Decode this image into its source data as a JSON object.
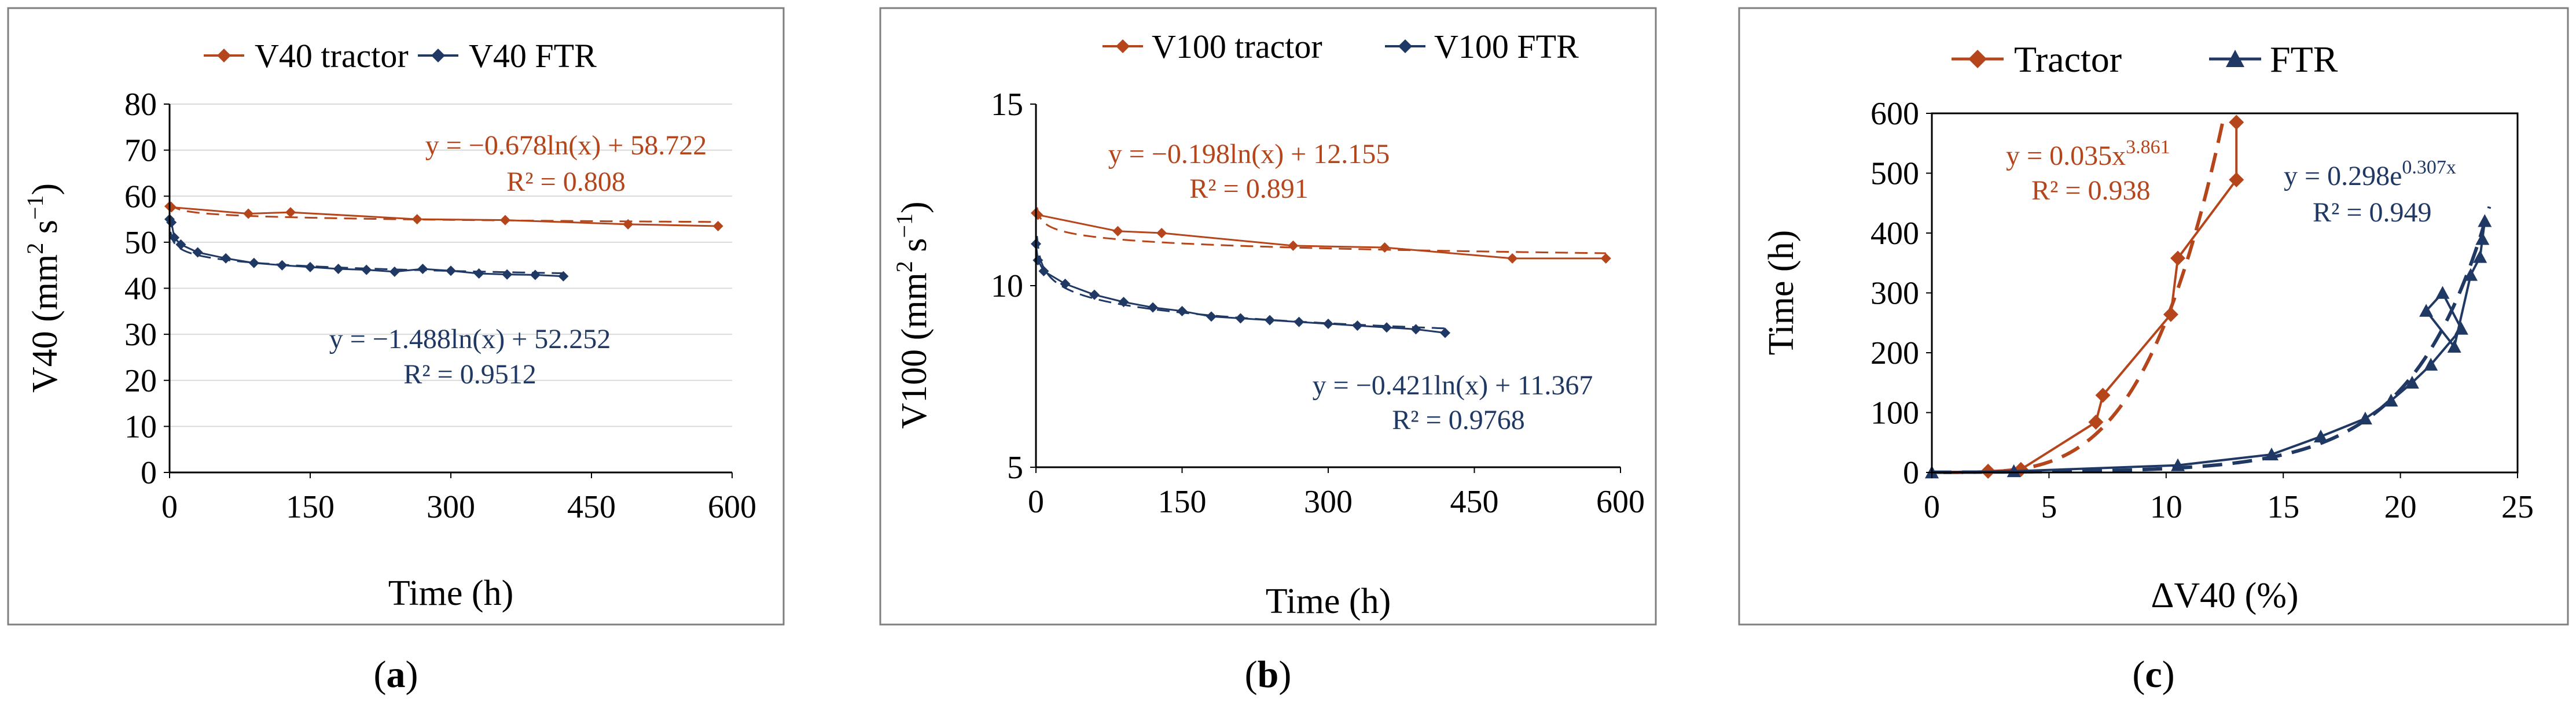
{
  "colors": {
    "tractor": "#B5451B",
    "ftr": "#1F3864",
    "frame": "#7F7F7F",
    "axis": "#000000"
  },
  "caption_labels": [
    "a",
    "b",
    "c"
  ],
  "chart_data": [
    {
      "type": "scatter",
      "panel": "a",
      "title": "",
      "xlabel": "Time (h)",
      "ylabel_main": "V40  (mm",
      "ylabel_sup1": "2",
      "ylabel_mid": " s",
      "ylabel_sup2": "−1",
      "ylabel_end": ")",
      "xlim": [
        0,
        600
      ],
      "ylim": [
        0,
        80
      ],
      "xticks": [
        0,
        150,
        300,
        450,
        600
      ],
      "yticks": [
        0,
        10,
        20,
        30,
        40,
        50,
        60,
        70,
        80
      ],
      "legend_position": "top",
      "series": [
        {
          "name": "V40 tractor",
          "x": [
            0,
            2,
            84,
            129,
            264,
            358,
            489,
            585
          ],
          "y": [
            57.8,
            57.6,
            56.2,
            56.5,
            55.0,
            54.8,
            53.9,
            53.5
          ],
          "trendline": {
            "kind": "log",
            "a": -0.678,
            "b": 58.722
          },
          "equation": "y = −0.678ln(x) + 58.722",
          "r2": "R² = 0.808"
        },
        {
          "name": "V40 FTR",
          "x": [
            0,
            2,
            5,
            12,
            30,
            60,
            90,
            120,
            150,
            180,
            210,
            240,
            270,
            300,
            330,
            360,
            390,
            420
          ],
          "y": [
            55.0,
            54.3,
            51.0,
            49.5,
            47.8,
            46.5,
            45.5,
            45.0,
            44.6,
            44.2,
            44.0,
            43.6,
            44.2,
            43.8,
            43.2,
            43.0,
            42.9,
            42.6
          ],
          "trendline": {
            "kind": "log",
            "a": -1.488,
            "b": 52.252
          },
          "equation": "y =  −1.488ln(x) + 52.252",
          "r2": "R² = 0.9512"
        }
      ]
    },
    {
      "type": "scatter",
      "panel": "b",
      "title": "",
      "xlabel": "Time (h)",
      "ylabel_main": "V100  (mm",
      "ylabel_sup1": "2",
      "ylabel_mid": " s",
      "ylabel_sup2": "−1",
      "ylabel_end": ")",
      "xlim": [
        0,
        600
      ],
      "ylim": [
        5,
        15
      ],
      "xticks": [
        0,
        150,
        300,
        450,
        600
      ],
      "yticks": [
        5,
        10,
        15
      ],
      "legend_position": "top",
      "series": [
        {
          "name": "V100 tractor",
          "x": [
            0,
            2,
            84,
            129,
            264,
            358,
            489,
            585
          ],
          "y": [
            12.0,
            11.95,
            11.5,
            11.45,
            11.1,
            11.05,
            10.75,
            10.75
          ],
          "trendline": {
            "kind": "log",
            "a": -0.198,
            "b": 12.155
          },
          "equation": "y = −0.198ln(x) + 12.155",
          "r2": "R² = 0.891"
        },
        {
          "name": "V100 FTR",
          "x": [
            0,
            2,
            8,
            30,
            60,
            90,
            120,
            150,
            180,
            210,
            240,
            270,
            300,
            330,
            360,
            390,
            420
          ],
          "y": [
            11.15,
            10.7,
            10.4,
            10.05,
            9.75,
            9.55,
            9.4,
            9.3,
            9.15,
            9.1,
            9.05,
            9.0,
            8.95,
            8.9,
            8.85,
            8.8,
            8.7
          ],
          "trendline": {
            "kind": "log",
            "a": -0.421,
            "b": 11.367
          },
          "equation": "y =  −0.421ln(x) + 11.367",
          "r2": "R² = 0.9768"
        }
      ]
    },
    {
      "type": "scatter",
      "panel": "c",
      "title": "",
      "xlabel": "ΔV40 (%)",
      "ylabel": "Time (h)",
      "xlim": [
        0,
        25
      ],
      "ylim": [
        0,
        600
      ],
      "xticks": [
        0,
        5,
        10,
        15,
        20,
        25
      ],
      "yticks": [
        0,
        100,
        200,
        300,
        400,
        500,
        600
      ],
      "legend_position": "top",
      "series": [
        {
          "name": "Tractor",
          "x": [
            2.4,
            3.8,
            7.0,
            7.3,
            10.2,
            10.5,
            13.0,
            13.0
          ],
          "y": [
            2,
            5,
            84,
            129,
            264,
            358,
            489,
            585
          ],
          "trendline": {
            "kind": "power",
            "a": 0.035,
            "b": 3.861
          },
          "equation_base": "y = 0.035x",
          "equation_exp": "3.861",
          "r2": "R² = 0.938"
        },
        {
          "name": "FTR",
          "x": [
            0,
            3.5,
            10.5,
            14.5,
            16.6,
            18.5,
            19.6,
            20.5,
            21.3,
            22.6,
            21.8,
            21.1,
            22.3,
            23.0,
            23.4,
            23.5,
            23.6
          ],
          "y": [
            0,
            2,
            12,
            30,
            60,
            90,
            120,
            150,
            180,
            240,
            300,
            270,
            210,
            330,
            360,
            390,
            420
          ],
          "trendline": {
            "kind": "exp",
            "a": 0.298,
            "b": 0.307
          },
          "equation_base": "y = 0.298e",
          "equation_exp": "0.307x",
          "r2": "R² = 0.949"
        }
      ]
    }
  ]
}
